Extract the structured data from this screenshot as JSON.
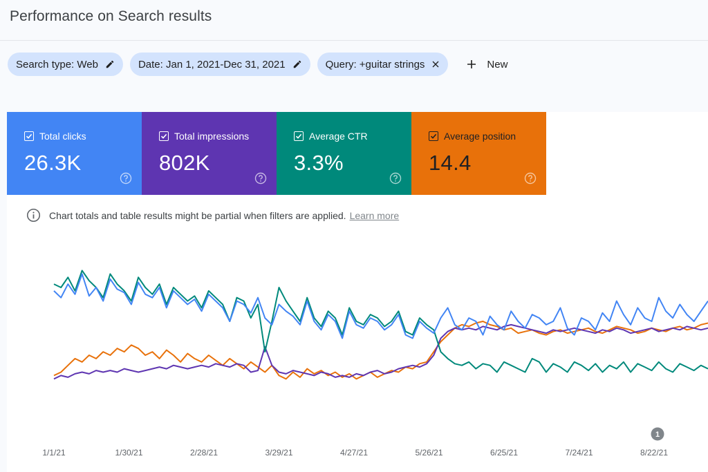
{
  "page": {
    "title": "Performance on Search results"
  },
  "filters": {
    "search_type": "Search type: Web",
    "date": "Date: Jan 1, 2021-Dec 31, 2021",
    "query": "Query: +guitar strings",
    "new_label": "New"
  },
  "metrics": [
    {
      "label": "Total clicks",
      "value": "26.3K",
      "color": "#4285f4"
    },
    {
      "label": "Total impressions",
      "value": "802K",
      "color": "#5e35b1"
    },
    {
      "label": "Average CTR",
      "value": "3.3%",
      "color": "#00897b"
    },
    {
      "label": "Average position",
      "value": "14.4",
      "color": "#e8710a"
    }
  ],
  "notice": {
    "text": "Chart totals and table results might be partial when filters are applied.",
    "link": "Learn more"
  },
  "chart_data": {
    "type": "line",
    "x_tick_labels": [
      "1/1/21",
      "1/30/21",
      "2/28/21",
      "3/29/21",
      "4/27/21",
      "5/26/21",
      "6/25/21",
      "7/24/21",
      "8/22/21"
    ],
    "annotation": {
      "label": "1",
      "date": "8/17/21"
    },
    "grid": false,
    "legend": "none",
    "series": [
      {
        "metric": "clicks",
        "color": "#4285f4",
        "values": [
          0.78,
          0.74,
          0.82,
          0.76,
          0.88,
          0.75,
          0.8,
          0.72,
          0.85,
          0.79,
          0.77,
          0.7,
          0.83,
          0.76,
          0.74,
          0.8,
          0.68,
          0.78,
          0.74,
          0.7,
          0.73,
          0.66,
          0.76,
          0.72,
          0.68,
          0.6,
          0.72,
          0.7,
          0.65,
          0.74,
          0.62,
          0.58,
          0.7,
          0.66,
          0.63,
          0.58,
          0.72,
          0.6,
          0.55,
          0.64,
          0.6,
          0.5,
          0.66,
          0.58,
          0.56,
          0.62,
          0.6,
          0.55,
          0.58,
          0.64,
          0.52,
          0.5,
          0.6,
          0.56,
          0.53,
          0.62,
          0.68,
          0.58,
          0.55,
          0.62,
          0.6,
          0.52,
          0.63,
          0.58,
          0.55,
          0.66,
          0.6,
          0.56,
          0.64,
          0.62,
          0.58,
          0.6,
          0.68,
          0.56,
          0.52,
          0.62,
          0.6,
          0.55,
          0.65,
          0.6,
          0.72,
          0.64,
          0.58,
          0.68,
          0.62,
          0.6,
          0.74,
          0.66,
          0.62,
          0.7,
          0.64,
          0.6,
          0.66,
          0.72
        ]
      },
      {
        "metric": "impressions",
        "color": "#5e35b1",
        "values": [
          0.26,
          0.28,
          0.27,
          0.29,
          0.3,
          0.29,
          0.31,
          0.3,
          0.31,
          0.3,
          0.32,
          0.31,
          0.3,
          0.31,
          0.32,
          0.33,
          0.32,
          0.34,
          0.33,
          0.32,
          0.33,
          0.34,
          0.33,
          0.35,
          0.34,
          0.33,
          0.35,
          0.34,
          0.3,
          0.31,
          0.45,
          0.34,
          0.3,
          0.29,
          0.31,
          0.3,
          0.29,
          0.28,
          0.3,
          0.29,
          0.27,
          0.28,
          0.27,
          0.29,
          0.28,
          0.3,
          0.31,
          0.29,
          0.3,
          0.32,
          0.33,
          0.34,
          0.33,
          0.35,
          0.4,
          0.5,
          0.54,
          0.56,
          0.55,
          0.56,
          0.55,
          0.57,
          0.56,
          0.55,
          0.57,
          0.58,
          0.57,
          0.56,
          0.55,
          0.54,
          0.53,
          0.55,
          0.54,
          0.55,
          0.56,
          0.55,
          0.54,
          0.53,
          0.55,
          0.54,
          0.56,
          0.55,
          0.53,
          0.54,
          0.55,
          0.56,
          0.54,
          0.55,
          0.56,
          0.55,
          0.57,
          0.56,
          0.55,
          0.56
        ]
      },
      {
        "metric": "ctr",
        "color": "#00897b",
        "values": [
          0.82,
          0.8,
          0.86,
          0.78,
          0.9,
          0.84,
          0.8,
          0.74,
          0.88,
          0.82,
          0.78,
          0.72,
          0.86,
          0.8,
          0.76,
          0.82,
          0.7,
          0.8,
          0.76,
          0.72,
          0.75,
          0.68,
          0.78,
          0.74,
          0.7,
          0.6,
          0.74,
          0.72,
          0.62,
          0.7,
          0.42,
          0.6,
          0.8,
          0.72,
          0.66,
          0.6,
          0.74,
          0.62,
          0.57,
          0.66,
          0.62,
          0.52,
          0.68,
          0.6,
          0.58,
          0.64,
          0.62,
          0.57,
          0.6,
          0.66,
          0.54,
          0.52,
          0.62,
          0.58,
          0.55,
          0.42,
          0.38,
          0.35,
          0.34,
          0.36,
          0.32,
          0.35,
          0.34,
          0.3,
          0.36,
          0.34,
          0.32,
          0.3,
          0.38,
          0.36,
          0.3,
          0.35,
          0.33,
          0.3,
          0.36,
          0.34,
          0.31,
          0.35,
          0.3,
          0.34,
          0.32,
          0.36,
          0.3,
          0.35,
          0.33,
          0.31,
          0.36,
          0.32,
          0.3,
          0.35,
          0.33,
          0.31,
          0.34,
          0.32
        ]
      },
      {
        "metric": "position",
        "color": "#e8710a",
        "values": [
          0.28,
          0.3,
          0.34,
          0.38,
          0.36,
          0.4,
          0.38,
          0.42,
          0.4,
          0.44,
          0.42,
          0.46,
          0.44,
          0.4,
          0.42,
          0.38,
          0.43,
          0.4,
          0.36,
          0.41,
          0.38,
          0.36,
          0.4,
          0.37,
          0.34,
          0.38,
          0.35,
          0.32,
          0.36,
          0.33,
          0.3,
          0.34,
          0.28,
          0.26,
          0.3,
          0.27,
          0.32,
          0.29,
          0.31,
          0.28,
          0.3,
          0.27,
          0.29,
          0.26,
          0.28,
          0.3,
          0.27,
          0.29,
          0.31,
          0.3,
          0.33,
          0.32,
          0.35,
          0.36,
          0.42,
          0.48,
          0.52,
          0.56,
          0.58,
          0.57,
          0.59,
          0.6,
          0.58,
          0.57,
          0.55,
          0.56,
          0.53,
          0.54,
          0.55,
          0.53,
          0.52,
          0.54,
          0.55,
          0.53,
          0.54,
          0.55,
          0.56,
          0.54,
          0.53,
          0.55,
          0.57,
          0.56,
          0.55,
          0.53,
          0.54,
          0.56,
          0.55,
          0.54,
          0.56,
          0.57,
          0.55,
          0.56,
          0.58,
          0.59
        ]
      }
    ]
  }
}
